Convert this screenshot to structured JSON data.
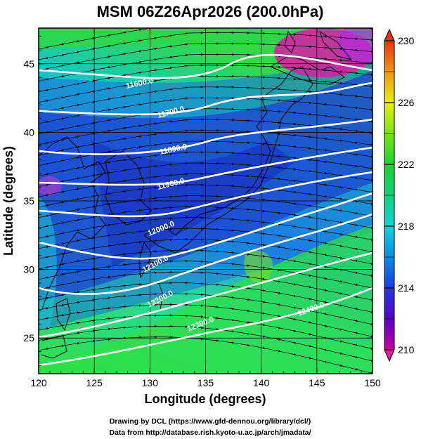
{
  "title": "MSM 06Z26Apr2026 (200.0hPa)",
  "map": {
    "xlabel": "Longitude (degrees)",
    "ylabel": "Latitude  (degrees)",
    "lon_range": [
      120,
      150
    ],
    "lat_range": [
      22.4,
      47.6
    ],
    "lon_ticks": [
      "120",
      "125",
      "130",
      "135",
      "140",
      "145",
      "150"
    ],
    "lat_ticks": [
      "25",
      "30",
      "35",
      "40",
      "45"
    ],
    "grid": true
  },
  "colorbar": {
    "min": 210,
    "max": 230,
    "tick_labels": [
      "210",
      "214",
      "218",
      "222",
      "226",
      "230"
    ],
    "colors": [
      "#c800a0",
      "#4b00c8",
      "#1e3cdc",
      "#0aa0e6",
      "#14e6c8",
      "#14d25a",
      "#28dc14",
      "#a0e614",
      "#f0f014",
      "#f0a014",
      "#f05014",
      "#e61414"
    ]
  },
  "contour_labels": [
    "11600.0",
    "11700.0",
    "11800.0",
    "11900.0",
    "12000.0",
    "12100.0",
    "12200.0",
    "12300.0",
    "12400.0"
  ],
  "credits": {
    "line1": "Drawing by DCL (https://www.gfd-dennou.org/library/dcl/)",
    "line2": "Data from http://database.rish.kyoto-u.ac.jp/arch/jmadata/"
  }
}
